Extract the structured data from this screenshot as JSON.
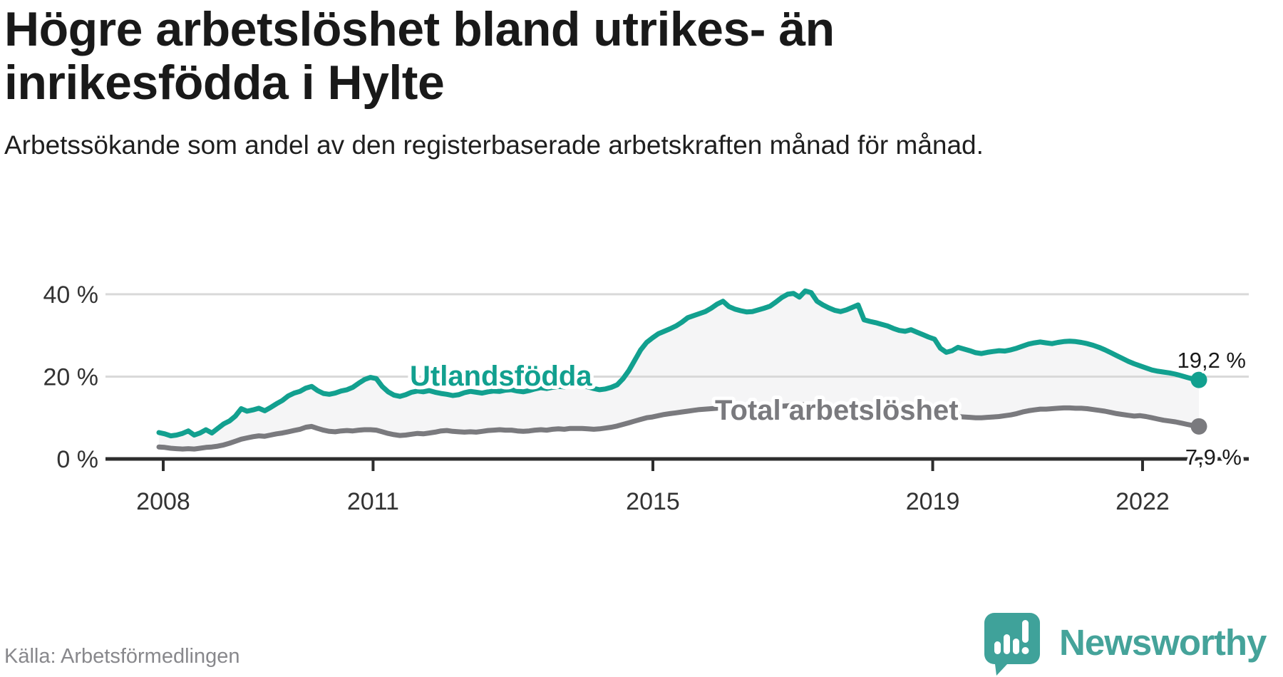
{
  "header": {
    "title": "Högre arbetslöshet bland utrikes- än inrikesfödda i Hylte",
    "subtitle": "Arbetssökande som andel av den registerbaserade arbetskraften månad för månad."
  },
  "footer": {
    "source": "Källa: Arbetsförmedlingen",
    "brand": "Newsworthy"
  },
  "colors": {
    "accent_teal": "#12a08f",
    "line_gray": "#7a7a7e",
    "band_fill": "#f5f5f6",
    "gridline": "#d9d9d9",
    "axis": "#2d2d2d",
    "tick_text": "#333333",
    "end_label_text": "#1a1a1a",
    "logo_teal": "#45a39a"
  },
  "chart_data": {
    "type": "line",
    "title": "Högre arbetslöshet bland utrikes- än inrikesfödda i Hylte",
    "subtitle": "Arbetssökande som andel av den registerbaserade arbetskraften månad för månad.",
    "unit": "%",
    "xlabel": "",
    "ylabel": "",
    "x_range": {
      "start": "2008-01",
      "end": "2022-10",
      "frequency": "monthly"
    },
    "ylim": [
      0,
      44
    ],
    "grid": "horizontal",
    "legend": "inline-labels",
    "band_fill_between_series": true,
    "x_ticks": [
      {
        "label": "2008",
        "year": 2008
      },
      {
        "label": "2011",
        "year": 2011
      },
      {
        "label": "2015",
        "year": 2015
      },
      {
        "label": "2019",
        "year": 2019
      },
      {
        "label": "2022",
        "year": 2022
      }
    ],
    "y_ticks": [
      {
        "label": "0 %",
        "value": 0
      },
      {
        "label": "20 %",
        "value": 20
      },
      {
        "label": "40 %",
        "value": 40
      }
    ],
    "series": [
      {
        "name": "Utlandsfödda",
        "color": "#12a08f",
        "end_label": "19,2 %",
        "end_value": 19.2,
        "values": [
          6.4,
          6.1,
          5.6,
          5.8,
          6.2,
          6.8,
          5.8,
          6.3,
          7.1,
          6.3,
          7.4,
          8.5,
          9.2,
          10.4,
          12.2,
          11.6,
          11.9,
          12.3,
          11.7,
          12.5,
          13.4,
          14.2,
          15.3,
          16.0,
          16.4,
          17.2,
          17.6,
          16.6,
          15.9,
          15.7,
          16.0,
          16.5,
          16.8,
          17.4,
          18.4,
          19.3,
          19.8,
          19.5,
          17.6,
          16.3,
          15.5,
          15.2,
          15.6,
          16.2,
          16.5,
          16.3,
          16.6,
          16.2,
          15.9,
          15.7,
          15.4,
          15.6,
          16.1,
          16.4,
          16.2,
          16.0,
          16.3,
          16.5,
          16.4,
          16.7,
          16.8,
          16.5,
          16.3,
          16.6,
          17.0,
          17.3,
          17.1,
          17.4,
          17.6,
          17.5,
          17.8,
          18.0,
          17.9,
          17.5,
          17.1,
          16.8,
          17.0,
          17.4,
          18.0,
          19.5,
          21.5,
          24.0,
          26.5,
          28.3,
          29.4,
          30.4,
          31.0,
          31.6,
          32.3,
          33.2,
          34.3,
          34.8,
          35.3,
          35.8,
          36.6,
          37.6,
          38.3,
          37.0,
          36.4,
          36.0,
          35.7,
          35.8,
          36.2,
          36.6,
          37.1,
          38.1,
          39.2,
          40.0,
          40.2,
          39.3,
          40.8,
          40.4,
          38.3,
          37.4,
          36.7,
          36.1,
          35.8,
          36.2,
          36.8,
          37.4,
          33.8,
          33.4,
          33.1,
          32.7,
          32.3,
          31.7,
          31.2,
          31.0,
          31.4,
          30.8,
          30.2,
          29.6,
          29.1,
          26.9,
          25.9,
          26.3,
          27.1,
          26.7,
          26.3,
          25.8,
          25.6,
          25.9,
          26.1,
          26.3,
          26.2,
          26.5,
          26.9,
          27.4,
          27.9,
          28.2,
          28.4,
          28.2,
          28.0,
          28.3,
          28.5,
          28.6,
          28.5,
          28.3,
          28.0,
          27.6,
          27.1,
          26.5,
          25.8,
          25.1,
          24.4,
          23.7,
          23.1,
          22.6,
          22.1,
          21.6,
          21.3,
          21.1,
          20.9,
          20.6,
          20.2,
          19.8,
          19.4,
          19.2
        ]
      },
      {
        "name": "Total arbetslöshet",
        "color": "#7a7a7e",
        "end_label": "7,9 %",
        "end_value": 7.9,
        "values": [
          2.9,
          2.8,
          2.6,
          2.5,
          2.4,
          2.5,
          2.4,
          2.6,
          2.8,
          2.9,
          3.1,
          3.4,
          3.8,
          4.3,
          4.8,
          5.1,
          5.4,
          5.6,
          5.5,
          5.8,
          6.1,
          6.3,
          6.6,
          6.9,
          7.2,
          7.7,
          7.9,
          7.4,
          7.0,
          6.7,
          6.6,
          6.8,
          6.9,
          6.8,
          7.0,
          7.1,
          7.1,
          7.0,
          6.6,
          6.2,
          5.9,
          5.7,
          5.8,
          6.0,
          6.2,
          6.1,
          6.3,
          6.5,
          6.8,
          6.9,
          6.7,
          6.6,
          6.5,
          6.6,
          6.5,
          6.7,
          6.9,
          7.0,
          7.1,
          7.0,
          7.0,
          6.8,
          6.7,
          6.8,
          7.0,
          7.1,
          7.0,
          7.2,
          7.3,
          7.2,
          7.4,
          7.4,
          7.4,
          7.3,
          7.2,
          7.3,
          7.5,
          7.7,
          8.0,
          8.4,
          8.8,
          9.2,
          9.6,
          10.0,
          10.2,
          10.5,
          10.8,
          11.0,
          11.2,
          11.4,
          11.6,
          11.8,
          12.0,
          12.1,
          12.2,
          12.3,
          12.4,
          12.5,
          12.5,
          12.4,
          12.3,
          12.3,
          12.4,
          12.5,
          12.6,
          12.7,
          12.8,
          12.9,
          13.0,
          13.1,
          13.2,
          13.0,
          12.8,
          12.6,
          12.4,
          12.3,
          12.2,
          12.3,
          12.4,
          12.5,
          11.6,
          11.4,
          11.2,
          11.1,
          11.0,
          10.9,
          10.8,
          10.8,
          10.9,
          10.7,
          10.6,
          10.5,
          10.3,
          10.0,
          9.9,
          10.1,
          10.3,
          10.2,
          10.1,
          10.0,
          10.0,
          10.1,
          10.2,
          10.3,
          10.5,
          10.7,
          11.0,
          11.4,
          11.7,
          11.9,
          12.1,
          12.1,
          12.2,
          12.3,
          12.4,
          12.4,
          12.3,
          12.3,
          12.2,
          12.0,
          11.8,
          11.6,
          11.3,
          11.0,
          10.8,
          10.6,
          10.4,
          10.5,
          10.3,
          10.0,
          9.7,
          9.4,
          9.2,
          9.0,
          8.7,
          8.4,
          8.1,
          7.9
        ]
      }
    ]
  }
}
